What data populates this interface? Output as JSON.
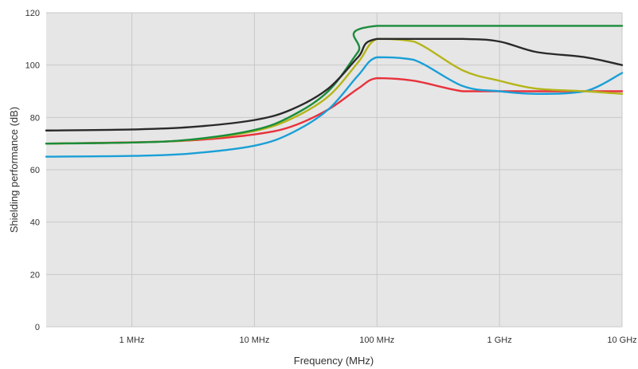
{
  "chart_data": {
    "type": "line",
    "xlabel": "Frequency (MHz)",
    "ylabel": "Shielding performance (dB)",
    "x_scale": "log",
    "xlim": [
      0.2,
      10000
    ],
    "ylim": [
      0,
      120
    ],
    "y_ticks": [
      0,
      20,
      40,
      60,
      80,
      100,
      120
    ],
    "x_ticks": [
      {
        "value": 1,
        "label": "1 MHz"
      },
      {
        "value": 10,
        "label": "10 MHz"
      },
      {
        "value": 100,
        "label": "100 MHz"
      },
      {
        "value": 1000,
        "label": "1 GHz"
      },
      {
        "value": 10000,
        "label": "10 GHz"
      }
    ],
    "grid": true,
    "plot_background": "#e6e6e6",
    "series": [
      {
        "color": "#e8323c",
        "points": [
          [
            0.2,
            70
          ],
          [
            1,
            70.5
          ],
          [
            3,
            71.2
          ],
          [
            10,
            73.5
          ],
          [
            20,
            76.5
          ],
          [
            40,
            83
          ],
          [
            70,
            91
          ],
          [
            100,
            95
          ],
          [
            200,
            94
          ],
          [
            500,
            90
          ],
          [
            1000,
            90
          ],
          [
            3000,
            90
          ],
          [
            10000,
            90
          ]
        ]
      },
      {
        "color": "#1a9fd6",
        "points": [
          [
            0.2,
            65
          ],
          [
            1,
            65.3
          ],
          [
            3,
            66.2
          ],
          [
            10,
            69.2
          ],
          [
            20,
            74
          ],
          [
            40,
            83
          ],
          [
            70,
            96
          ],
          [
            100,
            103
          ],
          [
            200,
            102
          ],
          [
            500,
            92
          ],
          [
            1000,
            90
          ],
          [
            2000,
            89
          ],
          [
            5000,
            90
          ],
          [
            10000,
            97
          ]
        ]
      },
      {
        "color": "#b5b51a",
        "points": [
          [
            0.2,
            70
          ],
          [
            1,
            70.4
          ],
          [
            3,
            71.4
          ],
          [
            10,
            74.8
          ],
          [
            20,
            79.5
          ],
          [
            40,
            88
          ],
          [
            70,
            101
          ],
          [
            100,
            110
          ],
          [
            200,
            109
          ],
          [
            500,
            98
          ],
          [
            1000,
            94
          ],
          [
            2000,
            91
          ],
          [
            5000,
            90
          ],
          [
            10000,
            89
          ]
        ]
      },
      {
        "color": "#1a8c3c",
        "points": [
          [
            0.2,
            70
          ],
          [
            1,
            70.4
          ],
          [
            3,
            71.5
          ],
          [
            10,
            75.2
          ],
          [
            20,
            80.5
          ],
          [
            40,
            90
          ],
          [
            70,
            105
          ],
          [
            100,
            115
          ],
          [
            10000,
            115
          ]
        ]
      },
      {
        "color": "#2a2a2a",
        "points": [
          [
            0.2,
            75
          ],
          [
            1,
            75.4
          ],
          [
            3,
            76.3
          ],
          [
            10,
            79
          ],
          [
            20,
            83
          ],
          [
            40,
            91
          ],
          [
            70,
            103
          ],
          [
            100,
            110
          ],
          [
            500,
            110
          ],
          [
            1000,
            109
          ],
          [
            2000,
            105
          ],
          [
            5000,
            103
          ],
          [
            10000,
            100
          ]
        ]
      }
    ]
  }
}
